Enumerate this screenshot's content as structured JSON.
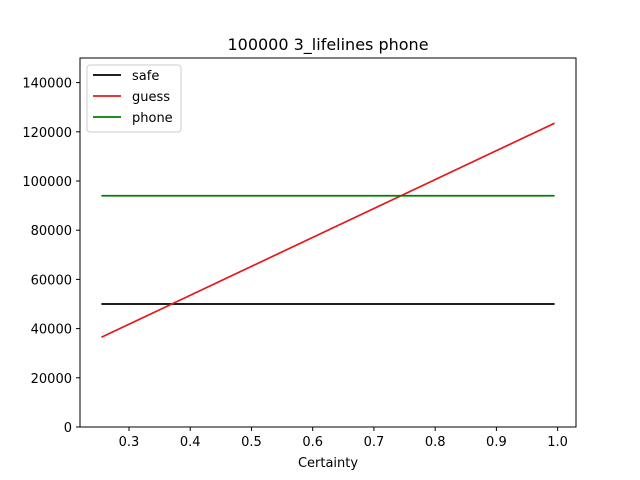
{
  "chart_data": {
    "type": "line",
    "title": "100000 3_lifelines phone",
    "xlabel": "Certainty",
    "ylabel": "",
    "xlim": [
      0.22,
      1.03
    ],
    "ylim": [
      0,
      150000
    ],
    "xticks": [
      0.3,
      0.4,
      0.5,
      0.6,
      0.7,
      0.8,
      0.9,
      1.0
    ],
    "xtick_labels": [
      "0.3",
      "0.4",
      "0.5",
      "0.6",
      "0.7",
      "0.8",
      "0.9",
      "1.0"
    ],
    "yticks": [
      0,
      20000,
      40000,
      60000,
      80000,
      100000,
      120000,
      140000
    ],
    "ytick_labels": [
      "0",
      "20000",
      "40000",
      "60000",
      "80000",
      "100000",
      "120000",
      "140000"
    ],
    "grid": false,
    "legend_position": "top-left",
    "series": [
      {
        "name": "safe",
        "color": "#000000",
        "x": [
          0.255,
          0.995
        ],
        "y": [
          50000,
          50000
        ]
      },
      {
        "name": "guess",
        "color": "#e31a1c",
        "x": [
          0.255,
          0.995
        ],
        "y": [
          36500,
          123500
        ]
      },
      {
        "name": "phone",
        "color": "#008000",
        "x": [
          0.255,
          0.995
        ],
        "y": [
          94000,
          94000
        ]
      }
    ]
  }
}
